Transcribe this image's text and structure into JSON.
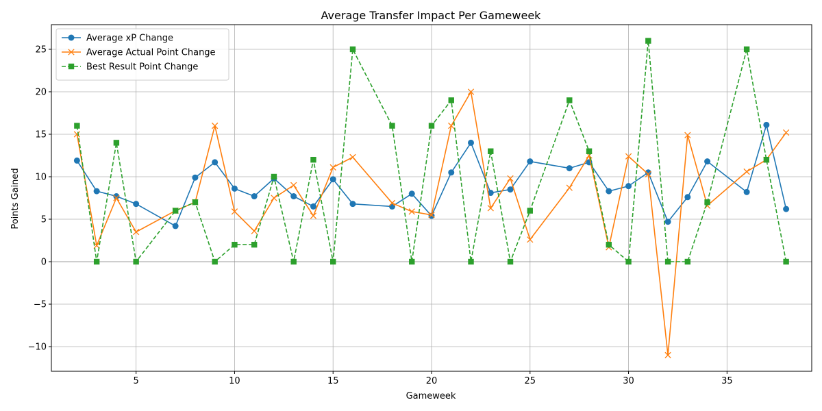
{
  "chart_data": {
    "type": "line",
    "title": "Average Transfer Impact Per Gameweek",
    "xlabel": "Gameweek",
    "ylabel": "Points Gained",
    "xlim": [
      0.7,
      39.3
    ],
    "ylim": [
      -12.9,
      27.9
    ],
    "xticks": [
      5,
      10,
      15,
      20,
      25,
      30,
      35
    ],
    "yticks": [
      -10,
      -5,
      0,
      5,
      10,
      15,
      20,
      25
    ],
    "grid": true,
    "legend_position": "top-left",
    "reference_line": 0,
    "series": [
      {
        "name": "Average xP Change",
        "color": "#1f77b4",
        "marker": "circle",
        "linestyle": "solid",
        "points": [
          [
            2,
            11.9
          ],
          [
            3,
            8.3
          ],
          [
            4,
            7.7
          ],
          [
            5,
            6.8
          ],
          [
            7,
            4.2
          ],
          [
            8,
            9.9
          ],
          [
            9,
            11.7
          ],
          [
            10,
            8.6
          ],
          [
            11,
            7.7
          ],
          [
            12,
            9.8
          ],
          [
            13,
            7.7
          ],
          [
            14,
            6.5
          ],
          [
            15,
            9.7
          ],
          [
            16,
            6.8
          ],
          [
            18,
            6.5
          ],
          [
            19,
            8.0
          ],
          [
            20,
            5.4
          ],
          [
            21,
            10.5
          ],
          [
            22,
            14.0
          ],
          [
            23,
            8.1
          ],
          [
            24,
            8.5
          ],
          [
            25,
            11.8
          ],
          [
            27,
            11.0
          ],
          [
            28,
            11.7
          ],
          [
            29,
            8.3
          ],
          [
            30,
            8.9
          ],
          [
            31,
            10.5
          ],
          [
            32,
            4.7
          ],
          [
            33,
            7.6
          ],
          [
            34,
            11.8
          ],
          [
            36,
            8.2
          ],
          [
            37,
            16.1
          ],
          [
            38,
            6.2
          ]
        ]
      },
      {
        "name": "Average Actual Point Change",
        "color": "#ff7f0e",
        "marker": "x",
        "linestyle": "solid",
        "points": [
          [
            2,
            15.0
          ],
          [
            3,
            1.9
          ],
          [
            4,
            7.5
          ],
          [
            5,
            3.5
          ],
          [
            7,
            6.0
          ],
          [
            8,
            7.0
          ],
          [
            9,
            16.0
          ],
          [
            10,
            5.9
          ],
          [
            11,
            3.6
          ],
          [
            12,
            7.5
          ],
          [
            13,
            9.0
          ],
          [
            14,
            5.4
          ],
          [
            15,
            11.1
          ],
          [
            16,
            12.3
          ],
          [
            18,
            6.9
          ],
          [
            19,
            5.9
          ],
          [
            20,
            5.5
          ],
          [
            21,
            16.0
          ],
          [
            22,
            20.0
          ],
          [
            23,
            6.3
          ],
          [
            24,
            9.8
          ],
          [
            25,
            2.6
          ],
          [
            27,
            8.7
          ],
          [
            28,
            12.5
          ],
          [
            29,
            1.7
          ],
          [
            30,
            12.4
          ],
          [
            31,
            10.3
          ],
          [
            32,
            -11.0
          ],
          [
            33,
            14.9
          ],
          [
            34,
            6.6
          ],
          [
            36,
            10.6
          ],
          [
            37,
            12.0
          ],
          [
            38,
            15.2
          ]
        ]
      },
      {
        "name": "Best Result Point Change",
        "color": "#2ca02c",
        "marker": "square",
        "linestyle": "dashed",
        "points": [
          [
            2,
            16
          ],
          [
            3,
            0
          ],
          [
            4,
            14
          ],
          [
            5,
            0
          ],
          [
            7,
            6
          ],
          [
            8,
            7
          ],
          [
            9,
            0
          ],
          [
            10,
            2
          ],
          [
            11,
            2
          ],
          [
            12,
            10
          ],
          [
            13,
            0
          ],
          [
            14,
            12
          ],
          [
            15,
            0
          ],
          [
            16,
            25
          ],
          [
            18,
            16
          ],
          [
            19,
            0
          ],
          [
            20,
            16
          ],
          [
            21,
            19
          ],
          [
            22,
            0
          ],
          [
            23,
            13
          ],
          [
            24,
            0
          ],
          [
            25,
            6
          ],
          [
            27,
            19
          ],
          [
            28,
            13
          ],
          [
            29,
            2
          ],
          [
            30,
            0
          ],
          [
            31,
            26
          ],
          [
            32,
            0
          ],
          [
            33,
            0
          ],
          [
            34,
            7
          ],
          [
            36,
            25
          ],
          [
            37,
            12
          ],
          [
            38,
            0
          ]
        ]
      }
    ]
  }
}
